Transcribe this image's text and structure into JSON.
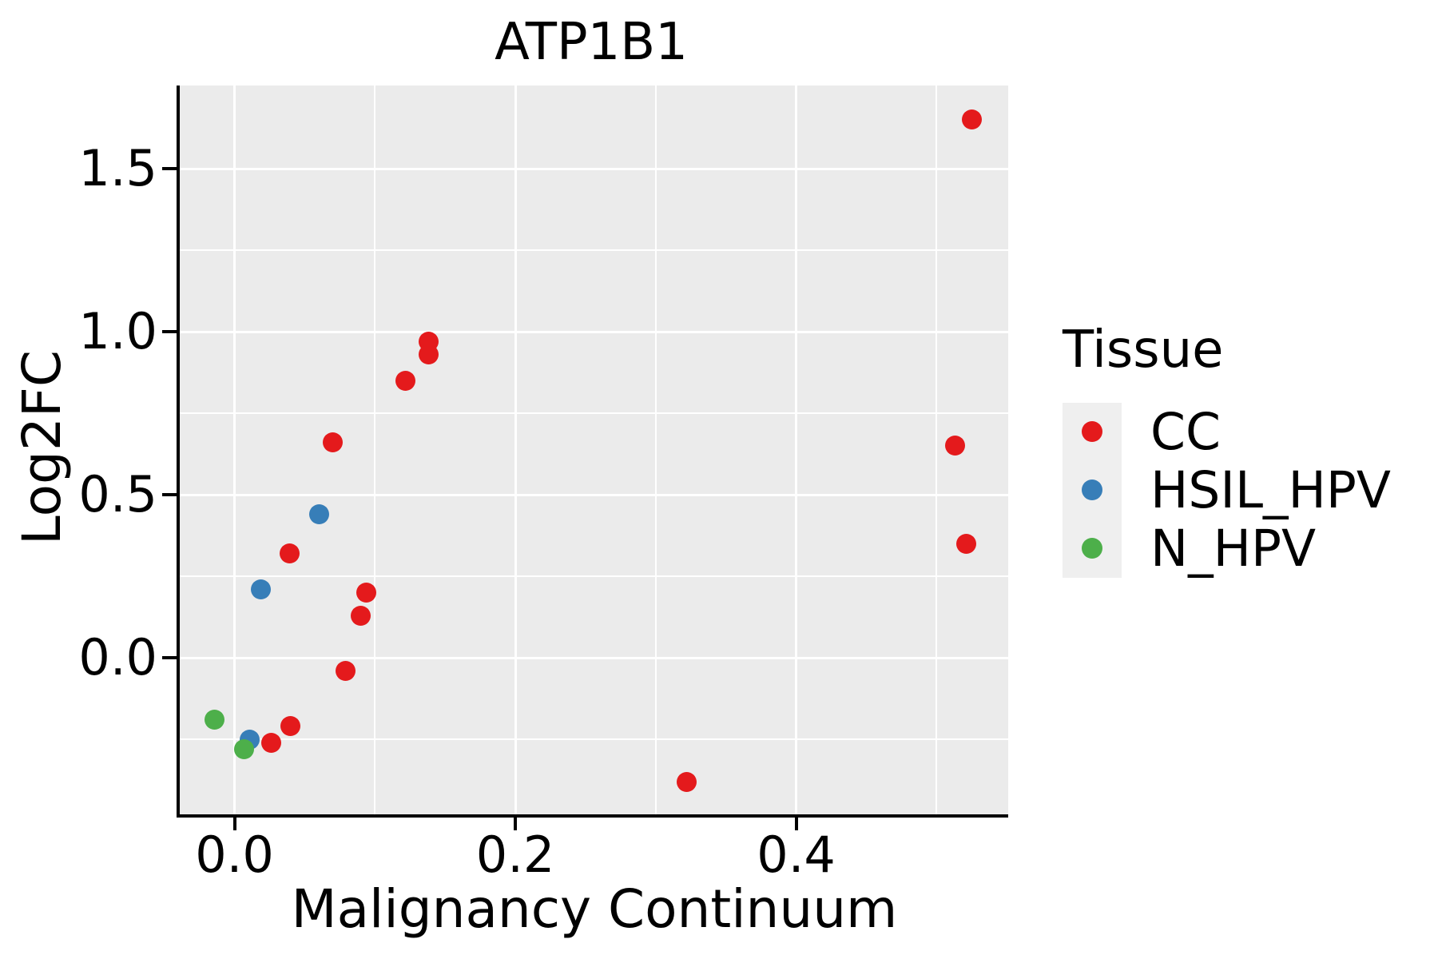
{
  "title": "ATP1B1",
  "axes": {
    "x": {
      "label": "Malignancy Continuum",
      "tick_labels": [
        "0.0",
        "0.2",
        "0.4"
      ],
      "major_ticks": [
        0.0,
        0.2,
        0.4
      ],
      "minor_ticks": [
        0.1,
        0.3,
        0.5
      ],
      "range": [
        -0.039,
        0.551
      ]
    },
    "y": {
      "label": "Log2FC",
      "tick_labels": [
        "0.0",
        "0.5",
        "1.0",
        "1.5"
      ],
      "major_ticks": [
        0.0,
        0.5,
        1.0,
        1.5
      ],
      "minor_ticks": [
        -0.25,
        0.25,
        0.75,
        1.25
      ],
      "range": [
        -0.48,
        1.755
      ]
    }
  },
  "legend": {
    "title": "Tissue",
    "items": [
      {
        "label": "CC",
        "color": "#E41A1C"
      },
      {
        "label": "HSIL_HPV",
        "color": "#377EB8"
      },
      {
        "label": "N_HPV",
        "color": "#4DAF4A"
      }
    ]
  },
  "colors": {
    "panel_bg": "#EBEBEB",
    "gridline": "#FFFFFF",
    "legend_key_bg": "#EFEFEF",
    "cc": "#E41A1C",
    "hsil_hpv": "#377EB8",
    "n_hpv": "#4DAF4A"
  },
  "chart_data": {
    "type": "scatter",
    "title": "ATP1B1",
    "xlabel": "Malignancy Continuum",
    "ylabel": "Log2FC",
    "xlim": [
      -0.039,
      0.551
    ],
    "ylim": [
      -0.48,
      1.755
    ],
    "grid": "major-and-minor",
    "legend_position": "right",
    "legend_title": "Tissue",
    "series": [
      {
        "name": "CC",
        "color": "#E41A1C",
        "points": [
          [
            0.525,
            1.65
          ],
          [
            0.138,
            0.97
          ],
          [
            0.138,
            0.93
          ],
          [
            0.122,
            0.85
          ],
          [
            0.07,
            0.66
          ],
          [
            0.513,
            0.65
          ],
          [
            0.521,
            0.35
          ],
          [
            0.039,
            0.32
          ],
          [
            0.094,
            0.2
          ],
          [
            0.09,
            0.13
          ],
          [
            0.079,
            -0.04
          ],
          [
            0.04,
            -0.21
          ],
          [
            0.026,
            -0.26
          ],
          [
            0.322,
            -0.38
          ]
        ]
      },
      {
        "name": "HSIL_HPV",
        "color": "#377EB8",
        "points": [
          [
            0.06,
            0.44
          ],
          [
            0.019,
            0.21
          ],
          [
            0.011,
            -0.25
          ]
        ]
      },
      {
        "name": "N_HPV",
        "color": "#4DAF4A",
        "points": [
          [
            -0.014,
            -0.19
          ],
          [
            0.007,
            -0.28
          ]
        ]
      }
    ]
  }
}
